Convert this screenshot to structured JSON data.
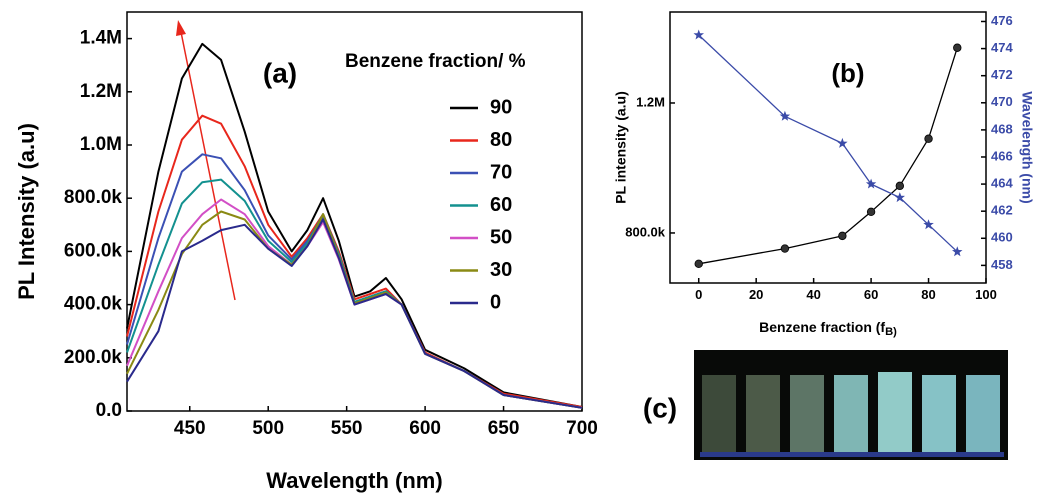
{
  "chart_data": [
    {
      "type": "line",
      "panel_label": "(a)",
      "xlabel": "Wavelength (nm)",
      "ylabel": "PL Intensity (a.u)",
      "legend_title": "Benzene fraction/ %",
      "x": [
        410,
        430,
        445,
        458,
        470,
        485,
        500,
        515,
        525,
        535,
        545,
        555,
        565,
        575,
        585,
        600,
        625,
        650,
        700
      ],
      "series": [
        {
          "name": "90",
          "color": "#000000",
          "values": [
            310000,
            900000,
            1250000,
            1380000,
            1320000,
            1050000,
            750000,
            600000,
            680000,
            800000,
            640000,
            430000,
            450000,
            500000,
            420000,
            230000,
            160000,
            70000,
            15000
          ]
        },
        {
          "name": "80",
          "color": "#e8271c",
          "values": [
            280000,
            750000,
            1020000,
            1110000,
            1080000,
            920000,
            700000,
            580000,
            650000,
            740000,
            600000,
            420000,
            440000,
            460000,
            400000,
            220000,
            150000,
            65000,
            15000
          ]
        },
        {
          "name": "70",
          "color": "#3b50b4",
          "values": [
            250000,
            650000,
            900000,
            965000,
            950000,
            830000,
            660000,
            570000,
            640000,
            730000,
            590000,
            410000,
            430000,
            450000,
            400000,
            215000,
            150000,
            60000,
            12000
          ]
        },
        {
          "name": "60",
          "color": "#13918f",
          "values": [
            220000,
            550000,
            780000,
            860000,
            870000,
            790000,
            640000,
            560000,
            630000,
            740000,
            590000,
            410000,
            430000,
            450000,
            400000,
            215000,
            150000,
            60000,
            12000
          ]
        },
        {
          "name": "50",
          "color": "#d24fc6",
          "values": [
            170000,
            450000,
            650000,
            740000,
            795000,
            740000,
            620000,
            550000,
            620000,
            710000,
            570000,
            400000,
            420000,
            440000,
            400000,
            215000,
            150000,
            60000,
            12000
          ]
        },
        {
          "name": "30",
          "color": "#8a8a14",
          "values": [
            140000,
            380000,
            590000,
            700000,
            750000,
            720000,
            610000,
            550000,
            620000,
            740000,
            580000,
            405000,
            425000,
            445000,
            400000,
            215000,
            150000,
            60000,
            12000
          ]
        },
        {
          "name": "0",
          "color": "#2a2a8c",
          "values": [
            110000,
            300000,
            600000,
            640000,
            680000,
            700000,
            610000,
            545000,
            620000,
            720000,
            575000,
            400000,
            420000,
            440000,
            400000,
            215000,
            150000,
            60000,
            12000
          ]
        }
      ],
      "xlim": [
        410,
        700
      ],
      "xticks": [
        450,
        500,
        550,
        600,
        650,
        700
      ],
      "ylim": [
        0,
        1500000
      ],
      "yticks": [
        {
          "value": 0,
          "label": "0.0"
        },
        {
          "value": 200000,
          "label": "200.0k"
        },
        {
          "value": 400000,
          "label": "400.0k"
        },
        {
          "value": 600000,
          "label": "600.0k"
        },
        {
          "value": 800000,
          "label": "800.0k"
        },
        {
          "value": 1000000,
          "label": "1.0M"
        },
        {
          "value": 1200000,
          "label": "1.2M"
        },
        {
          "value": 1400000,
          "label": "1.4M"
        }
      ]
    },
    {
      "type": "line",
      "panel_label": "(b)",
      "xlabel": "Benzene fraction (f",
      "xlabel_sub": "B)",
      "ylabel": "PL intensity (a.u)",
      "y2label": "Wavelength (nm)",
      "y2color": "#3b4ba8",
      "x": [
        0,
        30,
        50,
        60,
        70,
        80,
        90
      ],
      "series": [
        {
          "name": "PL intensity",
          "color": "#000000",
          "marker": "circle",
          "values": [
            705000,
            752000,
            791000,
            865000,
            945000,
            1090000,
            1370000
          ]
        },
        {
          "name": "Wavelength",
          "color": "#3b4ba8",
          "marker": "star",
          "axis": "y2",
          "values": [
            475,
            469,
            467,
            464,
            463,
            461,
            459
          ]
        }
      ],
      "xlim": [
        -10,
        100
      ],
      "xticks": [
        0,
        20,
        40,
        60,
        80,
        100
      ],
      "ylim": [
        646000,
        1480000
      ],
      "yticks": [
        {
          "value": 800000,
          "label": "800.0k"
        },
        {
          "value": 1200000,
          "label": "1.2M"
        }
      ],
      "y2lim": [
        456.7,
        476.7
      ],
      "y2ticks": [
        458,
        460,
        462,
        464,
        466,
        468,
        470,
        472,
        474,
        476
      ]
    }
  ],
  "panel_c": {
    "label": "(c)"
  }
}
